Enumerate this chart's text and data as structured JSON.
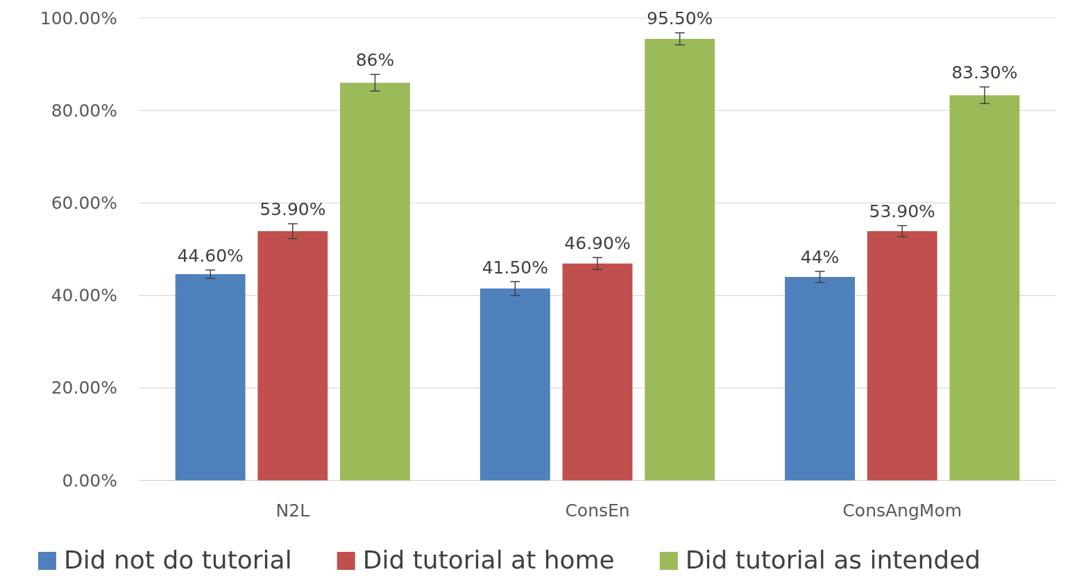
{
  "chart_data": {
    "type": "bar",
    "categories": [
      "N2L",
      "ConsEn",
      "ConsAngMom"
    ],
    "series": [
      {
        "name": "Did not do tutorial",
        "color": "#4f81bd",
        "values": [
          44.6,
          41.5,
          44
        ],
        "errors": [
          0.9,
          1.5,
          1.2
        ],
        "value_labels": [
          "44.60%",
          "41.50%",
          "44%"
        ]
      },
      {
        "name": "Did tutorial at home",
        "color": "#c0504d",
        "values": [
          53.9,
          46.9,
          53.9
        ],
        "errors": [
          1.6,
          1.3,
          1.2
        ],
        "value_labels": [
          "53.90%",
          "46.90%",
          "53.90%"
        ]
      },
      {
        "name": "Did tutorial as intended",
        "color": "#9bbb59",
        "values": [
          86,
          95.5,
          83.3
        ],
        "errors": [
          1.8,
          1.3,
          1.8
        ],
        "value_labels": [
          "86%",
          "95.50%",
          "83.30%"
        ]
      }
    ],
    "ylim": [
      0,
      100
    ],
    "yticks": [
      {
        "value": 0,
        "label": "0.00%"
      },
      {
        "value": 20,
        "label": "20.00%"
      },
      {
        "value": 40,
        "label": "40.00%"
      },
      {
        "value": 60,
        "label": "60.00%"
      },
      {
        "value": 80,
        "label": "80.00%"
      },
      {
        "value": 100,
        "label": "100.00%"
      }
    ],
    "grid": "y",
    "legend": "bottom"
  }
}
